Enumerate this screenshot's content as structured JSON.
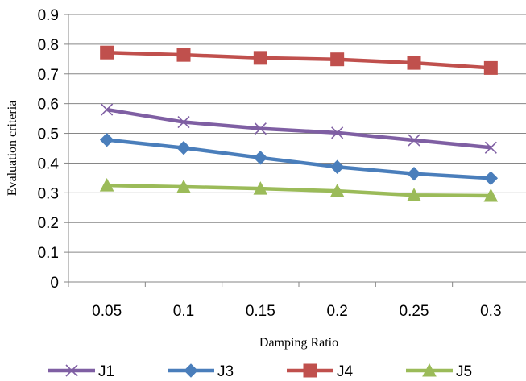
{
  "chart_data": {
    "type": "line",
    "x": [
      0.05,
      0.1,
      0.15,
      0.2,
      0.25,
      0.3
    ],
    "x_tick_labels": [
      "0.05",
      "0.1",
      "0.15",
      "0.2",
      "0.25",
      "0.3"
    ],
    "y_tick_labels": [
      "0",
      "0.1",
      "0.2",
      "0.3",
      "0.4",
      "0.5",
      "0.6",
      "0.7",
      "0.8",
      "0.9"
    ],
    "ylim": [
      0,
      0.9
    ],
    "xlabel": "Damping Ratio",
    "ylabel": "Evaluation  criteria",
    "grid": "horizontal",
    "legend_position": "bottom",
    "series": [
      {
        "name": "J1",
        "color": "#7F5FA3",
        "marker": "x-cross",
        "values": [
          0.58,
          0.538,
          0.516,
          0.502,
          0.477,
          0.452
        ]
      },
      {
        "name": "J3",
        "color": "#4A7EBB",
        "marker": "diamond",
        "values": [
          0.478,
          0.451,
          0.418,
          0.387,
          0.364,
          0.349
        ]
      },
      {
        "name": "J4",
        "color": "#C0504D",
        "marker": "square",
        "values": [
          0.772,
          0.764,
          0.754,
          0.749,
          0.737,
          0.72
        ]
      },
      {
        "name": "J5",
        "color": "#9BBB59",
        "marker": "triangle",
        "values": [
          0.325,
          0.32,
          0.314,
          0.306,
          0.292,
          0.29
        ]
      }
    ]
  }
}
